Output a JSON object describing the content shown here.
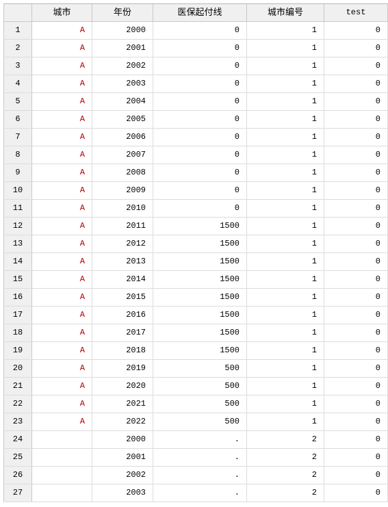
{
  "columns": [
    "城市",
    "年份",
    "医保起付线",
    "城市编号",
    "test"
  ],
  "rows": [
    {
      "n": "1",
      "city": "A",
      "year": "2000",
      "deductible": "0",
      "city_id": "1",
      "test": "0"
    },
    {
      "n": "2",
      "city": "A",
      "year": "2001",
      "deductible": "0",
      "city_id": "1",
      "test": "0"
    },
    {
      "n": "3",
      "city": "A",
      "year": "2002",
      "deductible": "0",
      "city_id": "1",
      "test": "0"
    },
    {
      "n": "4",
      "city": "A",
      "year": "2003",
      "deductible": "0",
      "city_id": "1",
      "test": "0"
    },
    {
      "n": "5",
      "city": "A",
      "year": "2004",
      "deductible": "0",
      "city_id": "1",
      "test": "0"
    },
    {
      "n": "6",
      "city": "A",
      "year": "2005",
      "deductible": "0",
      "city_id": "1",
      "test": "0"
    },
    {
      "n": "7",
      "city": "A",
      "year": "2006",
      "deductible": "0",
      "city_id": "1",
      "test": "0"
    },
    {
      "n": "8",
      "city": "A",
      "year": "2007",
      "deductible": "0",
      "city_id": "1",
      "test": "0"
    },
    {
      "n": "9",
      "city": "A",
      "year": "2008",
      "deductible": "0",
      "city_id": "1",
      "test": "0"
    },
    {
      "n": "10",
      "city": "A",
      "year": "2009",
      "deductible": "0",
      "city_id": "1",
      "test": "0"
    },
    {
      "n": "11",
      "city": "A",
      "year": "2010",
      "deductible": "0",
      "city_id": "1",
      "test": "0"
    },
    {
      "n": "12",
      "city": "A",
      "year": "2011",
      "deductible": "1500",
      "city_id": "1",
      "test": "0"
    },
    {
      "n": "13",
      "city": "A",
      "year": "2012",
      "deductible": "1500",
      "city_id": "1",
      "test": "0"
    },
    {
      "n": "14",
      "city": "A",
      "year": "2013",
      "deductible": "1500",
      "city_id": "1",
      "test": "0"
    },
    {
      "n": "15",
      "city": "A",
      "year": "2014",
      "deductible": "1500",
      "city_id": "1",
      "test": "0"
    },
    {
      "n": "16",
      "city": "A",
      "year": "2015",
      "deductible": "1500",
      "city_id": "1",
      "test": "0"
    },
    {
      "n": "17",
      "city": "A",
      "year": "2016",
      "deductible": "1500",
      "city_id": "1",
      "test": "0"
    },
    {
      "n": "18",
      "city": "A",
      "year": "2017",
      "deductible": "1500",
      "city_id": "1",
      "test": "0"
    },
    {
      "n": "19",
      "city": "A",
      "year": "2018",
      "deductible": "1500",
      "city_id": "1",
      "test": "0"
    },
    {
      "n": "20",
      "city": "A",
      "year": "2019",
      "deductible": "500",
      "city_id": "1",
      "test": "0"
    },
    {
      "n": "21",
      "city": "A",
      "year": "2020",
      "deductible": "500",
      "city_id": "1",
      "test": "0"
    },
    {
      "n": "22",
      "city": "A",
      "year": "2021",
      "deductible": "500",
      "city_id": "1",
      "test": "0"
    },
    {
      "n": "23",
      "city": "A",
      "year": "2022",
      "deductible": "500",
      "city_id": "1",
      "test": "0"
    },
    {
      "n": "24",
      "city": "",
      "year": "2000",
      "deductible": ".",
      "city_id": "2",
      "test": "0"
    },
    {
      "n": "25",
      "city": "",
      "year": "2001",
      "deductible": ".",
      "city_id": "2",
      "test": "0"
    },
    {
      "n": "26",
      "city": "",
      "year": "2002",
      "deductible": ".",
      "city_id": "2",
      "test": "0"
    },
    {
      "n": "27",
      "city": "",
      "year": "2003",
      "deductible": ".",
      "city_id": "2",
      "test": "0"
    }
  ],
  "colors": {
    "city_text": "#b00000",
    "header_bg": "#f0f0f0"
  }
}
